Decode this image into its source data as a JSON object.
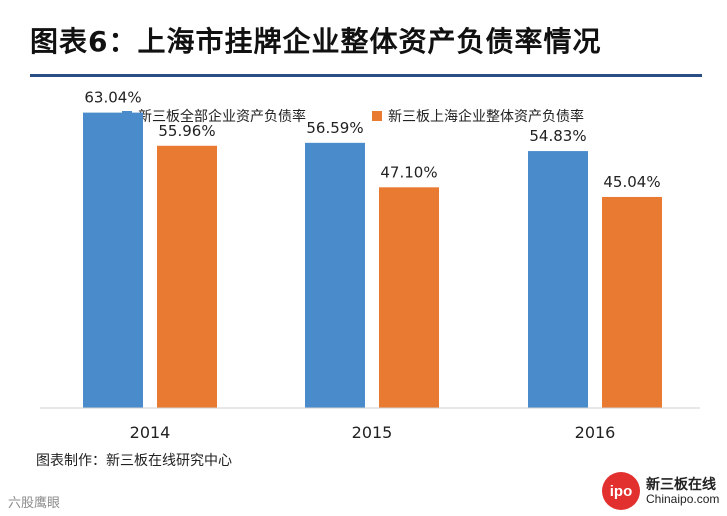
{
  "header": {
    "title": "图表6：上海市挂牌企业整体资产负债率情况"
  },
  "chart_data": {
    "type": "bar",
    "categories": [
      "2014",
      "2015",
      "2016"
    ],
    "series": [
      {
        "name": "新三板全部企业资产负债率",
        "values": [
          63.04,
          56.59,
          54.83
        ],
        "labels": [
          "63.04%",
          "56.59%",
          "54.83%"
        ],
        "color": "#4a8bcb"
      },
      {
        "name": "新三板上海企业整体资产负债率",
        "values": [
          55.96,
          47.1,
          45.04
        ],
        "labels": [
          "55.96%",
          "47.10%",
          "45.04%"
        ],
        "color": "#e97a32"
      }
    ],
    "ylim": [
      0,
      70
    ],
    "legend": "top",
    "grid": false
  },
  "footer": {
    "source": "图表制作：新三板在线研究中心",
    "watermark": "六股鹰眼",
    "logo_mark": "ipo",
    "logo_cn": "新三板在线",
    "logo_en": "Chinaipo.com"
  }
}
